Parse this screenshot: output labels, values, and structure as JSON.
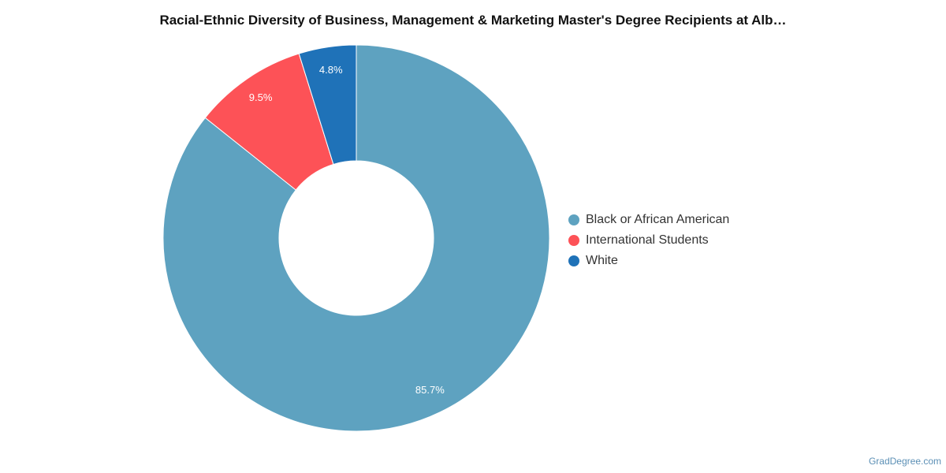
{
  "chart_data": {
    "type": "pie",
    "title": "Racial-Ethnic Diversity of Business, Management & Marketing Master's Degree Recipients at Alb…",
    "donut": true,
    "start": "top, clockwise",
    "legend_position": "right",
    "categories": [
      "Black or African American",
      "International Students",
      "White"
    ],
    "values": [
      85.7,
      9.5,
      4.8
    ],
    "labels": [
      "85.7%",
      "9.5%",
      "4.8%"
    ],
    "colors": [
      "#5ea2c0",
      "#fd5257",
      "#1f72b8"
    ]
  },
  "footer": {
    "credit": "GradDegree.com"
  }
}
